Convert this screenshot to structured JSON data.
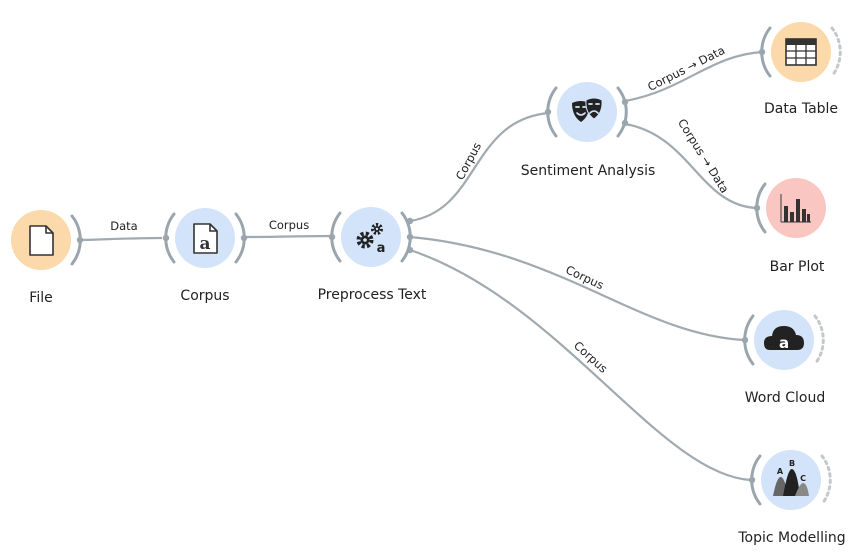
{
  "nodes": {
    "file": {
      "label": "File",
      "icon": "file-icon",
      "color": "#fbd9aa"
    },
    "corpus": {
      "label": "Corpus",
      "icon": "document-a-icon",
      "color": "#d3e4fa"
    },
    "preprocess": {
      "label": "Preprocess Text",
      "icon": "gears-a-icon",
      "color": "#d3e4fa"
    },
    "sentiment": {
      "label": "Sentiment Analysis",
      "icon": "theater-masks-icon",
      "color": "#d3e4fa"
    },
    "datatable": {
      "label": "Data Table",
      "icon": "table-icon",
      "color": "#fbd9aa"
    },
    "barplot": {
      "label": "Bar Plot",
      "icon": "bar-chart-icon",
      "color": "#f9c6c2"
    },
    "wordcloud": {
      "label": "Word Cloud",
      "icon": "cloud-a-icon",
      "color": "#d3e4fa"
    },
    "topic": {
      "label": "Topic Modelling",
      "icon": "abc-peaks-icon",
      "color": "#d3e4fa"
    }
  },
  "links": {
    "file_corpus": "Data",
    "corpus_preprocess": "Corpus",
    "preprocess_sentiment": "Corpus",
    "sentiment_datatable": "Corpus → Data",
    "sentiment_barplot": "Corpus → Data",
    "preprocess_wordcloud": "Corpus",
    "preprocess_topic": "Corpus"
  }
}
